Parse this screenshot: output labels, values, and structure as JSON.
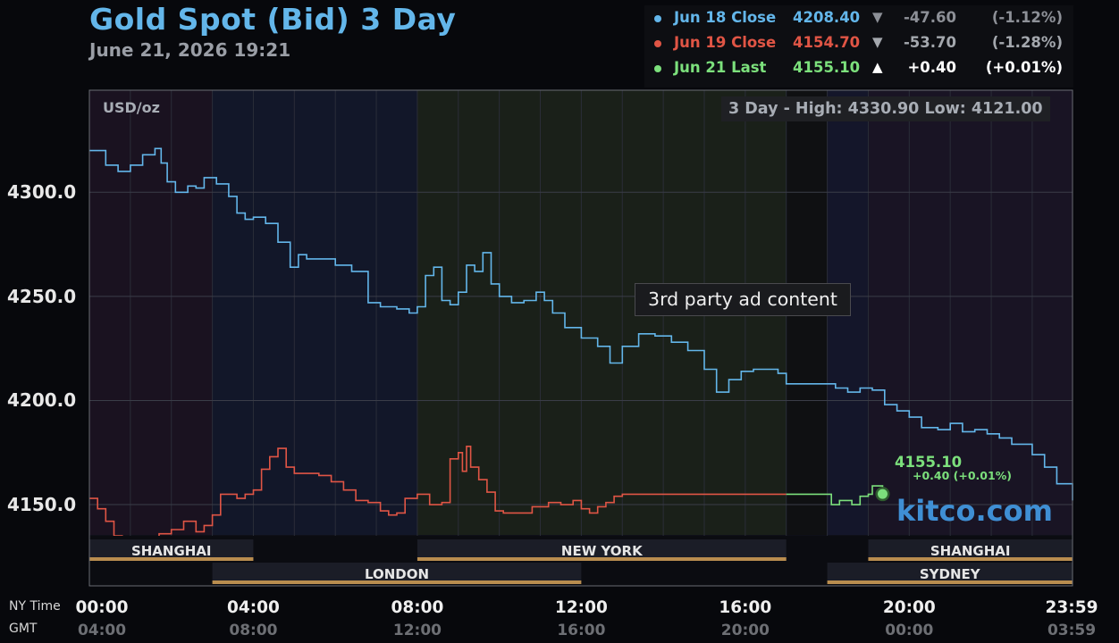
{
  "header": {
    "title": "Gold Spot (Bid) 3 Day",
    "subtitle": "June 21, 2026 19:21"
  },
  "summary": [
    {
      "label": "Jun 18 Close",
      "value": "4208.40",
      "arrow": "▼",
      "change": "-47.60",
      "pct": "(-1.12%)",
      "color": "#63b6ea",
      "rest_color": "#8d9097"
    },
    {
      "label": "Jun 19 Close",
      "value": "4154.70",
      "arrow": "▼",
      "change": "-53.70",
      "pct": "(-1.28%)",
      "color": "#e05545",
      "rest_color": "#a4a8ae"
    },
    {
      "label": "Jun 21 Last",
      "value": "4155.10",
      "arrow": "▲",
      "change": "+0.40",
      "pct": "(+0.01%)",
      "color": "#7ce07c",
      "rest_color": "#ffffff"
    }
  ],
  "overlays": {
    "unit": "USD/oz",
    "high_low": "3 Day - High: 4330.90  Low: 4121.00",
    "ad_text": "3rd party ad content",
    "watermark": "kitco.com",
    "last_price": "4155.10",
    "last_change": "+0.40 (+0.01%)"
  },
  "axes": {
    "row1_label": "NY Time",
    "row2_label": "GMT"
  },
  "sessions": [
    {
      "name": "SHANGHAI",
      "start_hour": 0,
      "end_hour": 4,
      "row": 1
    },
    {
      "name": "NEW YORK",
      "start_hour": 8,
      "end_hour": 17,
      "row": 1
    },
    {
      "name": "SHANGHAI",
      "start_hour": 19,
      "end_hour": 23.98,
      "row": 1
    },
    {
      "name": "LONDON",
      "start_hour": 3,
      "end_hour": 12,
      "row": 2
    },
    {
      "name": "SYDNEY",
      "start_hour": 18,
      "end_hour": 23.98,
      "row": 2
    }
  ],
  "chart_data": {
    "type": "line",
    "title": "Gold Spot (Bid) 3 Day",
    "ylabel": "USD/oz",
    "ylim": [
      4111,
      4349
    ],
    "xlim_hours": [
      0,
      23.983
    ],
    "y_ticks": [
      4150.0,
      4200.0,
      4250.0,
      4300.0
    ],
    "y_tick_labels": [
      "4150.0",
      "4200.0",
      "4250.0",
      "4300.0"
    ],
    "x_ticks_hours": [
      0,
      4,
      8,
      12,
      16,
      20,
      23.983
    ],
    "x_tick_labels_ny": [
      "00:00",
      "04:00",
      "08:00",
      "12:00",
      "16:00",
      "20:00",
      "23:59"
    ],
    "x_tick_labels_gmt": [
      "04:00",
      "08:00",
      "12:00",
      "16:00",
      "20:00",
      "00:00",
      "03:59"
    ],
    "grid": true,
    "series": [
      {
        "name": "Jun 18 Close",
        "color": "#63b6ea",
        "x": [
          0,
          0.4,
          0.7,
          1.0,
          1.3,
          1.6,
          1.75,
          1.9,
          2.1,
          2.4,
          2.6,
          2.8,
          3.1,
          3.4,
          3.6,
          3.8,
          4.0,
          4.3,
          4.6,
          4.9,
          5.1,
          5.3,
          5.6,
          6.0,
          6.4,
          6.8,
          7.1,
          7.5,
          7.8,
          8.0,
          8.2,
          8.4,
          8.6,
          8.8,
          9.0,
          9.2,
          9.4,
          9.6,
          9.8,
          10.0,
          10.3,
          10.6,
          10.9,
          11.1,
          11.3,
          11.6,
          12.0,
          12.4,
          12.7,
          13.0,
          13.4,
          13.8,
          14.2,
          14.6,
          15.0,
          15.3,
          15.6,
          15.9,
          16.2,
          16.5,
          16.8,
          17.0,
          17.5,
          18.0,
          18.2,
          18.5,
          18.8,
          19.1,
          19.4,
          19.7,
          20.0,
          20.3,
          20.7,
          21.0,
          21.3,
          21.6,
          21.9,
          22.2,
          22.5,
          22.8,
          23.0,
          23.3,
          23.6,
          23.983
        ],
        "values": [
          4320,
          4313,
          4310,
          4313,
          4318,
          4321,
          4314,
          4305,
          4300,
          4303,
          4302,
          4307,
          4304,
          4298,
          4290,
          4287,
          4288,
          4285,
          4276,
          4264,
          4270,
          4268,
          4268,
          4265,
          4262,
          4247,
          4245,
          4244,
          4242,
          4245,
          4260,
          4264,
          4248,
          4246,
          4252,
          4265,
          4262,
          4271,
          4256,
          4250,
          4247,
          4248,
          4252,
          4248,
          4242,
          4235,
          4230,
          4226,
          4218,
          4226,
          4232,
          4231,
          4228,
          4224,
          4215,
          4204,
          4210,
          4214,
          4215,
          4215,
          4213,
          4208,
          4208,
          4208,
          4206,
          4204,
          4206,
          4205,
          4198,
          4195,
          4192,
          4187,
          4186,
          4189,
          4185,
          4186,
          4184,
          4182,
          4179,
          4179,
          4174,
          4168,
          4160,
          4152
        ]
      },
      {
        "name": "Jun 19 Close",
        "color": "#e05545",
        "x": [
          0,
          0.2,
          0.4,
          0.6,
          0.8,
          1.0,
          1.2,
          1.4,
          1.7,
          2.0,
          2.3,
          2.6,
          2.8,
          3.0,
          3.2,
          3.4,
          3.6,
          3.8,
          4.0,
          4.2,
          4.4,
          4.6,
          4.8,
          5.0,
          5.3,
          5.6,
          5.9,
          6.2,
          6.5,
          6.8,
          7.1,
          7.3,
          7.5,
          7.7,
          8.0,
          8.3,
          8.6,
          8.8,
          9.0,
          9.1,
          9.2,
          9.3,
          9.5,
          9.7,
          9.9,
          10.1,
          10.4,
          10.8,
          11.2,
          11.5,
          11.8,
          12.0,
          12.2,
          12.4,
          12.6,
          12.8,
          13.0,
          17.0
        ],
        "values": [
          4153,
          4148,
          4142,
          4135,
          4127,
          4122,
          4125,
          4132,
          4136,
          4138,
          4142,
          4137,
          4140,
          4145,
          4155,
          4155,
          4153,
          4155,
          4157,
          4167,
          4173,
          4177,
          4168,
          4165,
          4165,
          4164,
          4161,
          4157,
          4152,
          4151,
          4147,
          4145,
          4146,
          4153,
          4155,
          4150,
          4151,
          4172,
          4175,
          4166,
          4178,
          4168,
          4162,
          4156,
          4147,
          4146,
          4146,
          4149,
          4151,
          4150,
          4152,
          4148,
          4146,
          4149,
          4151,
          4154,
          4155,
          4155
        ]
      },
      {
        "name": "Jun 21 Last",
        "color": "#7ce07c",
        "x": [
          17.0,
          18.0,
          18.1,
          18.3,
          18.6,
          18.8,
          19.0,
          19.1,
          19.2,
          19.35
        ],
        "values": [
          4155,
          4155,
          4150,
          4152,
          4150,
          4154,
          4155,
          4159,
          4159,
          4155.1
        ]
      }
    ]
  }
}
